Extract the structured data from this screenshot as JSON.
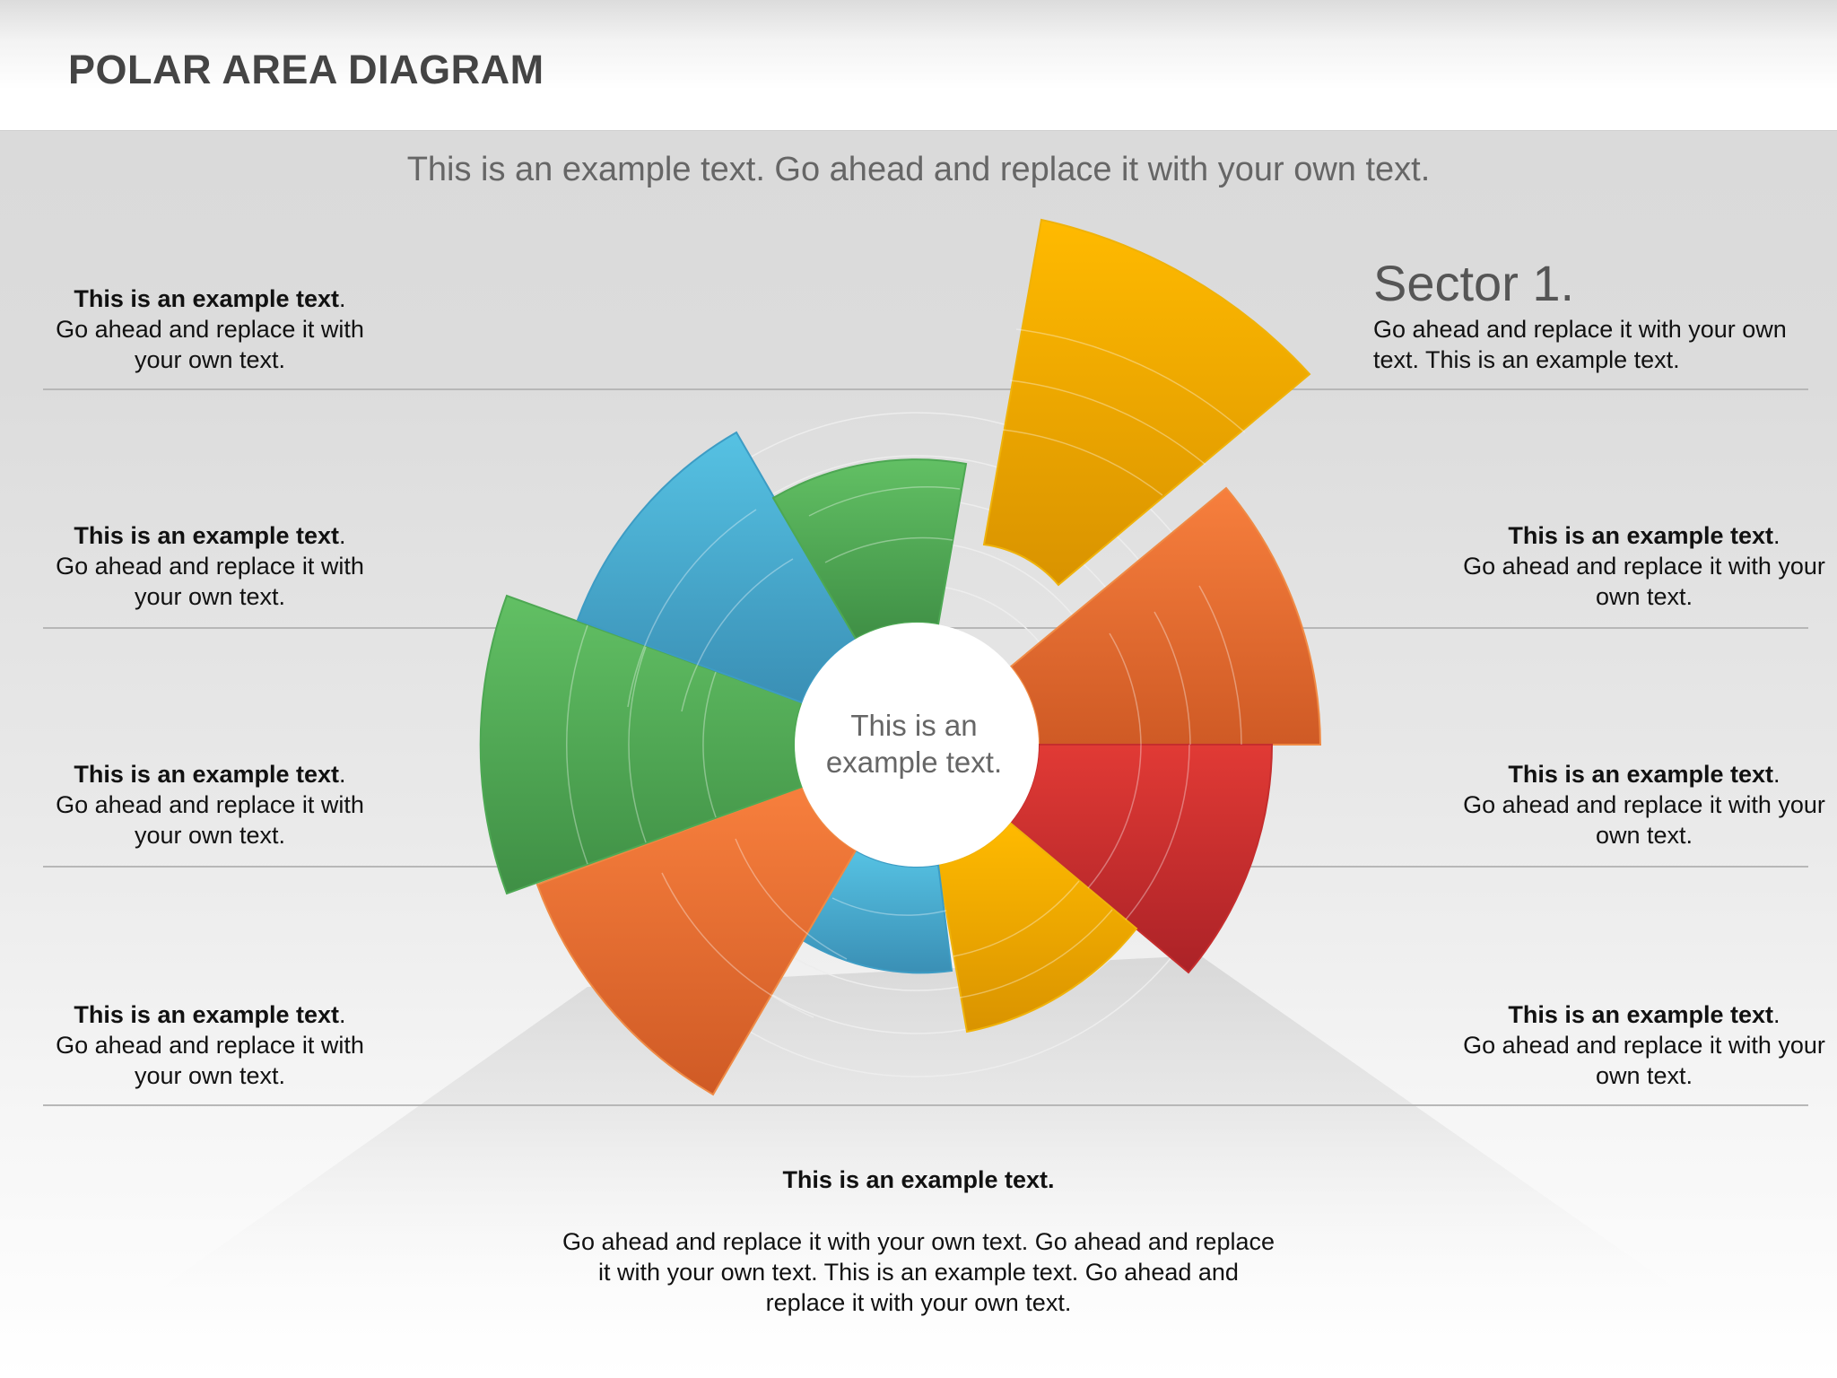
{
  "header": {
    "title": "POLAR AREA DIAGRAM"
  },
  "subtitle": "This is an example text. Go ahead and replace it with your own text.",
  "center_label": "This is an example text.",
  "sector_callout": {
    "title": "Sector 1.",
    "text": "Go ahead and replace it with your own text. This is an example text."
  },
  "left_blocks": [
    {
      "bold": "This is an example text",
      "punctuation": ".",
      "text": "Go ahead and replace it with your own text."
    },
    {
      "bold": "This is an example text",
      "punctuation": ".",
      "text": "Go ahead and replace it with your own text."
    },
    {
      "bold": "This is an example text",
      "punctuation": ".",
      "text": "Go ahead and replace it with your own text."
    },
    {
      "bold": "This is an example text",
      "punctuation": ".",
      "text": "Go ahead and replace it with your own text."
    }
  ],
  "right_blocks": [
    {
      "bold": "This is an example text",
      "punctuation": ".",
      "text": "Go ahead and replace it with your own text."
    },
    {
      "bold": "This is an example text",
      "punctuation": ".",
      "text": "Go ahead and replace it with your own text."
    },
    {
      "bold": "This is an example text",
      "punctuation": ".",
      "text": "Go ahead and replace it with your own text."
    }
  ],
  "bottom": {
    "title": "This is an example text.",
    "text": "Go ahead and replace it with your own text. Go ahead and replace it with your own text. This is an example text. Go ahead and replace it with your own text."
  },
  "sectors": [
    {
      "name": "sector-yellow-top",
      "color": "#ffb700",
      "value": 6,
      "exploded": true
    },
    {
      "name": "sector-orange-right",
      "color": "#f47b3d",
      "value": 4,
      "exploded": false
    },
    {
      "name": "sector-red-right",
      "color": "#da3434",
      "value": 3.5,
      "exploded": false
    },
    {
      "name": "sector-yellow-bottom",
      "color": "#ffb700",
      "value": 2,
      "exploded": false
    },
    {
      "name": "sector-blue-bottom",
      "color": "#4bb7dc",
      "value": 1,
      "exploded": false
    },
    {
      "name": "sector-orange-left",
      "color": "#f47b3d",
      "value": 4,
      "exploded": false
    },
    {
      "name": "sector-green-left",
      "color": "#5cb85c",
      "value": 4.5,
      "exploded": false
    },
    {
      "name": "sector-blue-top",
      "color": "#4bb7dc",
      "value": 3.5,
      "exploded": false
    },
    {
      "name": "sector-green-top",
      "color": "#5cb85c",
      "value": 2,
      "exploded": false
    }
  ]
}
